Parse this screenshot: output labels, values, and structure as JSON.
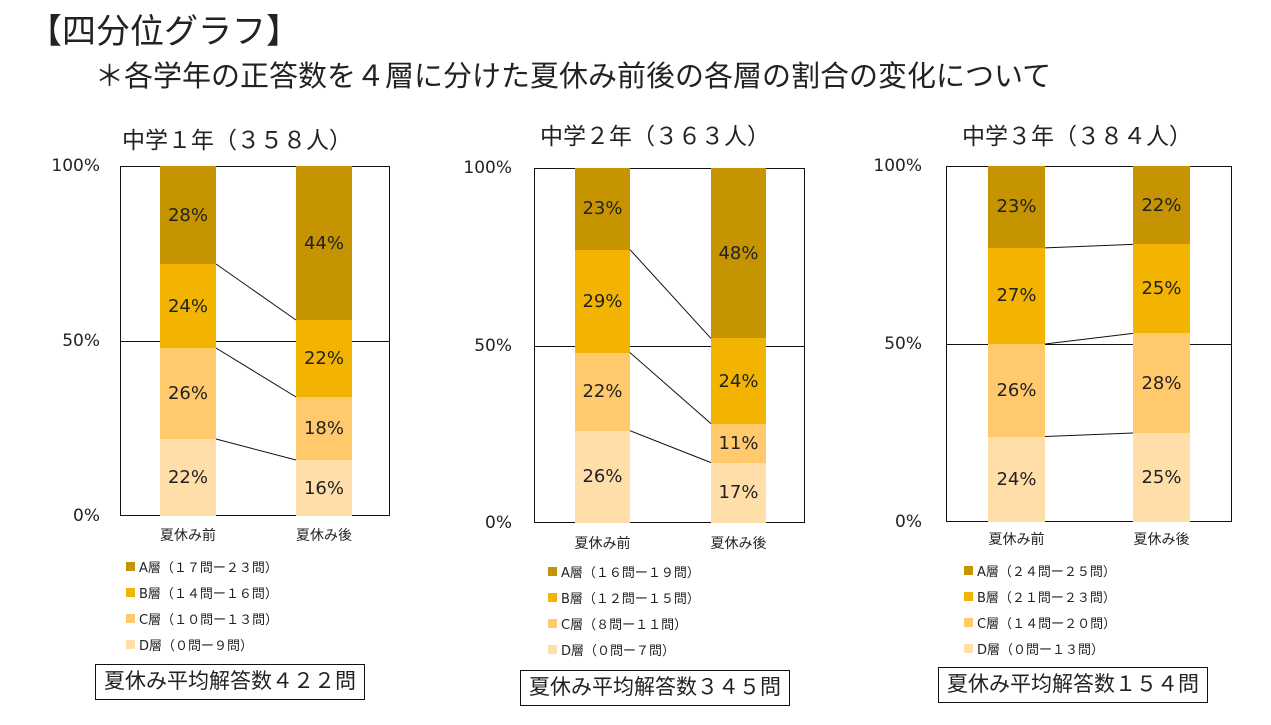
{
  "title": "【四分位グラフ】",
  "subtitle": "＊各学年の正答数を４層に分けた夏休み前後の各層の割合の変化について",
  "colors": {
    "A": "#C59400",
    "B": "#F2B400",
    "C": "#FFC96C",
    "D": "#FFDEAA"
  },
  "axis_ticks": [
    "100%",
    "50%",
    "0%"
  ],
  "chart_data": [
    {
      "type": "bar",
      "stacked": true,
      "title": "中学１年（３５８人）",
      "categories": [
        "夏休み前",
        "夏休み後"
      ],
      "ylim": [
        0,
        100
      ],
      "series": [
        {
          "name": "D層（０問ー９問）",
          "values": [
            22,
            16
          ],
          "labels": [
            "22%",
            "16%"
          ]
        },
        {
          "name": "C層（１０問ー１３問）",
          "values": [
            26,
            18
          ],
          "labels": [
            "26%",
            "18%"
          ]
        },
        {
          "name": "B層（１４問ー１６問）",
          "values": [
            24,
            22
          ],
          "labels": [
            "24%",
            "22%"
          ]
        },
        {
          "name": "A層（１７問ー２３問）",
          "values": [
            28,
            44
          ],
          "labels": [
            "28%",
            "44%"
          ]
        }
      ],
      "average": "夏休み平均解答数４２２問"
    },
    {
      "type": "bar",
      "stacked": true,
      "title": "中学２年（３６３人）",
      "categories": [
        "夏休み前",
        "夏休み後"
      ],
      "ylim": [
        0,
        100
      ],
      "series": [
        {
          "name": "D層（０問ー７問）",
          "values": [
            26,
            17
          ],
          "labels": [
            "26%",
            "17%"
          ]
        },
        {
          "name": "C層（８問ー１１問）",
          "values": [
            22,
            11
          ],
          "labels": [
            "22%",
            "11%"
          ]
        },
        {
          "name": "B層（１２問ー１５問）",
          "values": [
            29,
            24
          ],
          "labels": [
            "29%",
            "24%"
          ]
        },
        {
          "name": "A層（１６問ー１９問）",
          "values": [
            23,
            48
          ],
          "labels": [
            "23%",
            "48%"
          ]
        }
      ],
      "average": "夏休み平均解答数３４５問"
    },
    {
      "type": "bar",
      "stacked": true,
      "title": "中学３年（３８４人）",
      "categories": [
        "夏休み前",
        "夏休み後"
      ],
      "ylim": [
        0,
        100
      ],
      "series": [
        {
          "name": "D層（０問ー１３問）",
          "values": [
            24,
            25
          ],
          "labels": [
            "24%",
            "25%"
          ]
        },
        {
          "name": "C層（１４問ー２０問）",
          "values": [
            26,
            28
          ],
          "labels": [
            "26%",
            "28%"
          ]
        },
        {
          "name": "B層（２１問ー２３問）",
          "values": [
            27,
            25
          ],
          "labels": [
            "27%",
            "25%"
          ]
        },
        {
          "name": "A層（２４問ー２５問）",
          "values": [
            23,
            22
          ],
          "labels": [
            "23%",
            "22%"
          ]
        }
      ],
      "average": "夏休み平均解答数１５４問"
    }
  ]
}
